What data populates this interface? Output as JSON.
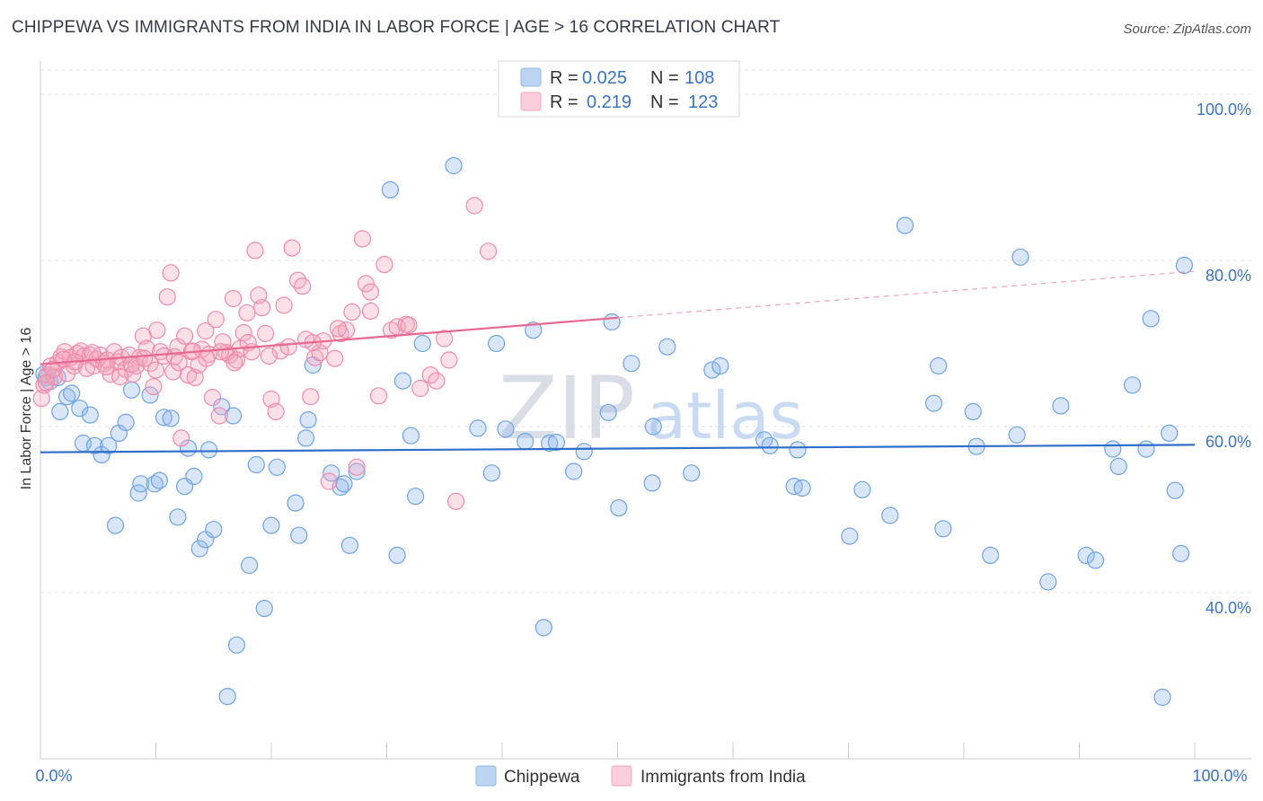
{
  "header": {
    "title": "CHIPPEWA VS IMMIGRANTS FROM INDIA IN LABOR FORCE | AGE > 16 CORRELATION CHART",
    "source": "Source: ZipAtlas.com"
  },
  "watermark": {
    "zip": "ZIP",
    "atlas": "atlas"
  },
  "legend": {
    "r_label": "R =",
    "n_label": "N =",
    "rows": [
      {
        "r": "0.025",
        "n": "108",
        "color": "#8fb8ea"
      },
      {
        "r": "0.219",
        "n": "123",
        "color": "#f3a6bd"
      }
    ]
  },
  "bottom_legend": [
    {
      "label": "Chippewa",
      "color": "#8fb8ea"
    },
    {
      "label": "Immigrants from India",
      "color": "#f3a6bd"
    }
  ],
  "chart_data": {
    "type": "scatter",
    "xlabel": "",
    "ylabel": "In Labor Force | Age > 16",
    "xlim": [
      0,
      100
    ],
    "ylim": [
      20,
      104
    ],
    "x_tick_labels": [
      "0.0%",
      "100.0%"
    ],
    "y_ticks": [
      40,
      60,
      80,
      100
    ],
    "y_tick_labels": [
      "40.0%",
      "60.0%",
      "80.0%",
      "100.0%"
    ],
    "grid": true,
    "legend_position": "top-center",
    "series": [
      {
        "name": "Chippewa",
        "color": "#6fa3e3",
        "trend": {
          "x0": 0,
          "y0": 56.9,
          "x1": 100,
          "y1": 57.8,
          "solid_until": 100
        },
        "points": [
          [
            0.5,
            65.9
          ],
          [
            0.8,
            65.4
          ],
          [
            1.5,
            65.9
          ],
          [
            1.7,
            61.8
          ],
          [
            2.3,
            63.6
          ],
          [
            2.7,
            64.0
          ],
          [
            3.4,
            62.2
          ],
          [
            3.7,
            58.0
          ],
          [
            4.3,
            61.4
          ],
          [
            4.7,
            57.7
          ],
          [
            5.3,
            56.6
          ],
          [
            5.9,
            57.7
          ],
          [
            6.5,
            48.1
          ],
          [
            6.8,
            59.2
          ],
          [
            7.4,
            60.5
          ],
          [
            7.9,
            64.4
          ],
          [
            8.5,
            52.0
          ],
          [
            8.7,
            53.1
          ],
          [
            9.5,
            63.8
          ],
          [
            9.9,
            53.1
          ],
          [
            10.3,
            53.5
          ],
          [
            10.7,
            61.1
          ],
          [
            11.3,
            61.0
          ],
          [
            11.9,
            49.1
          ],
          [
            12.5,
            52.8
          ],
          [
            12.8,
            57.4
          ],
          [
            13.3,
            54.0
          ],
          [
            13.8,
            45.3
          ],
          [
            14.3,
            46.4
          ],
          [
            14.6,
            57.2
          ],
          [
            15.0,
            47.6
          ],
          [
            15.7,
            62.4
          ],
          [
            16.2,
            27.5
          ],
          [
            16.7,
            61.3
          ],
          [
            17.0,
            33.7
          ],
          [
            18.1,
            43.3
          ],
          [
            18.7,
            55.4
          ],
          [
            19.4,
            38.1
          ],
          [
            20.0,
            48.1
          ],
          [
            20.5,
            55.1
          ],
          [
            22.1,
            50.8
          ],
          [
            22.4,
            46.9
          ],
          [
            23.0,
            58.6
          ],
          [
            23.2,
            60.8
          ],
          [
            23.6,
            67.4
          ],
          [
            25.2,
            54.4
          ],
          [
            26.0,
            52.7
          ],
          [
            26.3,
            53.1
          ],
          [
            26.8,
            45.7
          ],
          [
            27.4,
            54.6
          ],
          [
            30.3,
            88.5
          ],
          [
            30.9,
            44.5
          ],
          [
            31.4,
            65.5
          ],
          [
            32.1,
            58.9
          ],
          [
            32.5,
            51.6
          ],
          [
            33.1,
            70.0
          ],
          [
            35.8,
            91.4
          ],
          [
            37.9,
            59.8
          ],
          [
            39.1,
            54.4
          ],
          [
            39.5,
            70.0
          ],
          [
            40.3,
            59.7
          ],
          [
            42.0,
            58.2
          ],
          [
            42.7,
            71.6
          ],
          [
            43.6,
            35.8
          ],
          [
            44.1,
            58.0
          ],
          [
            44.7,
            58.1
          ],
          [
            46.2,
            54.6
          ],
          [
            47.1,
            57.0
          ],
          [
            49.2,
            61.7
          ],
          [
            49.5,
            72.6
          ],
          [
            50.1,
            50.2
          ],
          [
            51.2,
            67.6
          ],
          [
            53.0,
            53.2
          ],
          [
            53.1,
            60.0
          ],
          [
            54.3,
            69.6
          ],
          [
            56.4,
            54.4
          ],
          [
            58.2,
            66.8
          ],
          [
            58.9,
            67.3
          ],
          [
            62.7,
            58.4
          ],
          [
            63.2,
            57.7
          ],
          [
            65.3,
            52.8
          ],
          [
            65.6,
            57.2
          ],
          [
            66.0,
            52.6
          ],
          [
            70.1,
            46.8
          ],
          [
            71.2,
            52.4
          ],
          [
            73.6,
            49.3
          ],
          [
            74.9,
            84.2
          ],
          [
            77.4,
            62.8
          ],
          [
            77.8,
            67.3
          ],
          [
            78.2,
            47.7
          ],
          [
            80.8,
            61.8
          ],
          [
            81.1,
            57.6
          ],
          [
            82.3,
            44.5
          ],
          [
            84.6,
            59.0
          ],
          [
            84.9,
            80.4
          ],
          [
            87.3,
            41.3
          ],
          [
            88.4,
            62.5
          ],
          [
            90.6,
            44.5
          ],
          [
            91.4,
            43.9
          ],
          [
            92.9,
            57.3
          ],
          [
            93.4,
            55.2
          ],
          [
            94.6,
            65.0
          ],
          [
            95.8,
            57.3
          ],
          [
            96.2,
            73.0
          ],
          [
            97.2,
            27.4
          ],
          [
            97.8,
            59.2
          ],
          [
            98.3,
            52.3
          ],
          [
            98.8,
            44.7
          ],
          [
            99.1,
            79.4
          ],
          [
            0.3,
            66.3
          ]
        ]
      },
      {
        "name": "Immigrants from India",
        "color": "#f08aab",
        "trend": {
          "x0": 0,
          "y0": 67.5,
          "x1": 100,
          "y1": 78.7,
          "solid_until": 50
        },
        "points": [
          [
            0.1,
            63.4
          ],
          [
            0.3,
            65.0
          ],
          [
            0.6,
            66.2
          ],
          [
            0.9,
            67.3
          ],
          [
            1.2,
            66.0
          ],
          [
            1.5,
            67.7
          ],
          [
            1.8,
            68.4
          ],
          [
            2.1,
            69.0
          ],
          [
            2.3,
            66.4
          ],
          [
            2.6,
            68.3
          ],
          [
            2.9,
            67.3
          ],
          [
            3.2,
            68.8
          ],
          [
            3.5,
            69.1
          ],
          [
            3.8,
            68.5
          ],
          [
            4.0,
            67.0
          ],
          [
            4.3,
            68.6
          ],
          [
            4.6,
            67.3
          ],
          [
            4.9,
            68.1
          ],
          [
            5.2,
            68.6
          ],
          [
            5.5,
            67.6
          ],
          [
            5.8,
            68.0
          ],
          [
            6.1,
            66.3
          ],
          [
            6.4,
            69.0
          ],
          [
            6.7,
            67.8
          ],
          [
            7.0,
            68.3
          ],
          [
            7.4,
            66.9
          ],
          [
            7.7,
            68.6
          ],
          [
            8.0,
            66.3
          ],
          [
            8.3,
            67.3
          ],
          [
            8.6,
            68.3
          ],
          [
            8.9,
            70.9
          ],
          [
            9.2,
            69.4
          ],
          [
            9.5,
            67.6
          ],
          [
            9.8,
            64.8
          ],
          [
            10.1,
            71.6
          ],
          [
            10.4,
            69.0
          ],
          [
            10.7,
            68.5
          ],
          [
            11.0,
            75.6
          ],
          [
            11.3,
            78.5
          ],
          [
            11.6,
            68.4
          ],
          [
            11.9,
            69.6
          ],
          [
            12.2,
            58.6
          ],
          [
            12.5,
            70.9
          ],
          [
            12.8,
            66.2
          ],
          [
            13.1,
            69.0
          ],
          [
            13.4,
            65.9
          ],
          [
            13.7,
            67.4
          ],
          [
            14.0,
            69.3
          ],
          [
            14.3,
            71.5
          ],
          [
            14.6,
            68.7
          ],
          [
            14.9,
            63.5
          ],
          [
            15.2,
            72.9
          ],
          [
            15.5,
            61.3
          ],
          [
            15.8,
            70.2
          ],
          [
            16.1,
            68.9
          ],
          [
            16.4,
            68.6
          ],
          [
            16.7,
            75.4
          ],
          [
            17.0,
            68.0
          ],
          [
            17.3,
            69.4
          ],
          [
            17.6,
            71.3
          ],
          [
            17.9,
            73.7
          ],
          [
            18.3,
            69.0
          ],
          [
            18.6,
            81.2
          ],
          [
            18.9,
            75.8
          ],
          [
            19.2,
            74.3
          ],
          [
            19.5,
            71.2
          ],
          [
            20.0,
            63.3
          ],
          [
            20.4,
            61.8
          ],
          [
            20.8,
            69.1
          ],
          [
            21.1,
            74.6
          ],
          [
            21.8,
            81.5
          ],
          [
            22.3,
            77.6
          ],
          [
            22.7,
            76.9
          ],
          [
            23.0,
            70.5
          ],
          [
            23.4,
            63.6
          ],
          [
            23.8,
            68.3
          ],
          [
            24.2,
            68.9
          ],
          [
            24.5,
            70.3
          ],
          [
            25.0,
            53.4
          ],
          [
            25.5,
            68.2
          ],
          [
            26.0,
            71.2
          ],
          [
            26.5,
            71.6
          ],
          [
            27.0,
            73.8
          ],
          [
            27.4,
            55.1
          ],
          [
            27.9,
            82.6
          ],
          [
            28.2,
            77.2
          ],
          [
            28.6,
            76.2
          ],
          [
            29.3,
            63.7
          ],
          [
            29.8,
            79.5
          ],
          [
            30.4,
            71.6
          ],
          [
            30.9,
            72.0
          ],
          [
            31.7,
            72.3
          ],
          [
            31.9,
            72.2
          ],
          [
            32.9,
            64.6
          ],
          [
            33.8,
            66.2
          ],
          [
            34.3,
            65.5
          ],
          [
            35.0,
            70.6
          ],
          [
            35.4,
            68.0
          ],
          [
            36.0,
            51.0
          ],
          [
            37.6,
            86.6
          ],
          [
            38.8,
            81.1
          ],
          [
            11.5,
            66.6
          ],
          [
            0.5,
            65.3
          ],
          [
            1.1,
            66.9
          ],
          [
            2.0,
            68.1
          ],
          [
            3.0,
            67.8
          ],
          [
            4.5,
            68.9
          ],
          [
            5.7,
            67.2
          ],
          [
            6.9,
            66.0
          ],
          [
            7.9,
            67.5
          ],
          [
            9.0,
            68.2
          ],
          [
            10.0,
            66.8
          ],
          [
            12.0,
            67.7
          ],
          [
            13.2,
            69.1
          ],
          [
            14.4,
            68.2
          ],
          [
            15.6,
            69.0
          ],
          [
            16.8,
            67.7
          ],
          [
            18.0,
            70.1
          ],
          [
            19.8,
            68.5
          ],
          [
            21.5,
            69.6
          ],
          [
            23.6,
            70.1
          ],
          [
            25.8,
            71.8
          ],
          [
            28.6,
            73.9
          ]
        ]
      }
    ]
  }
}
